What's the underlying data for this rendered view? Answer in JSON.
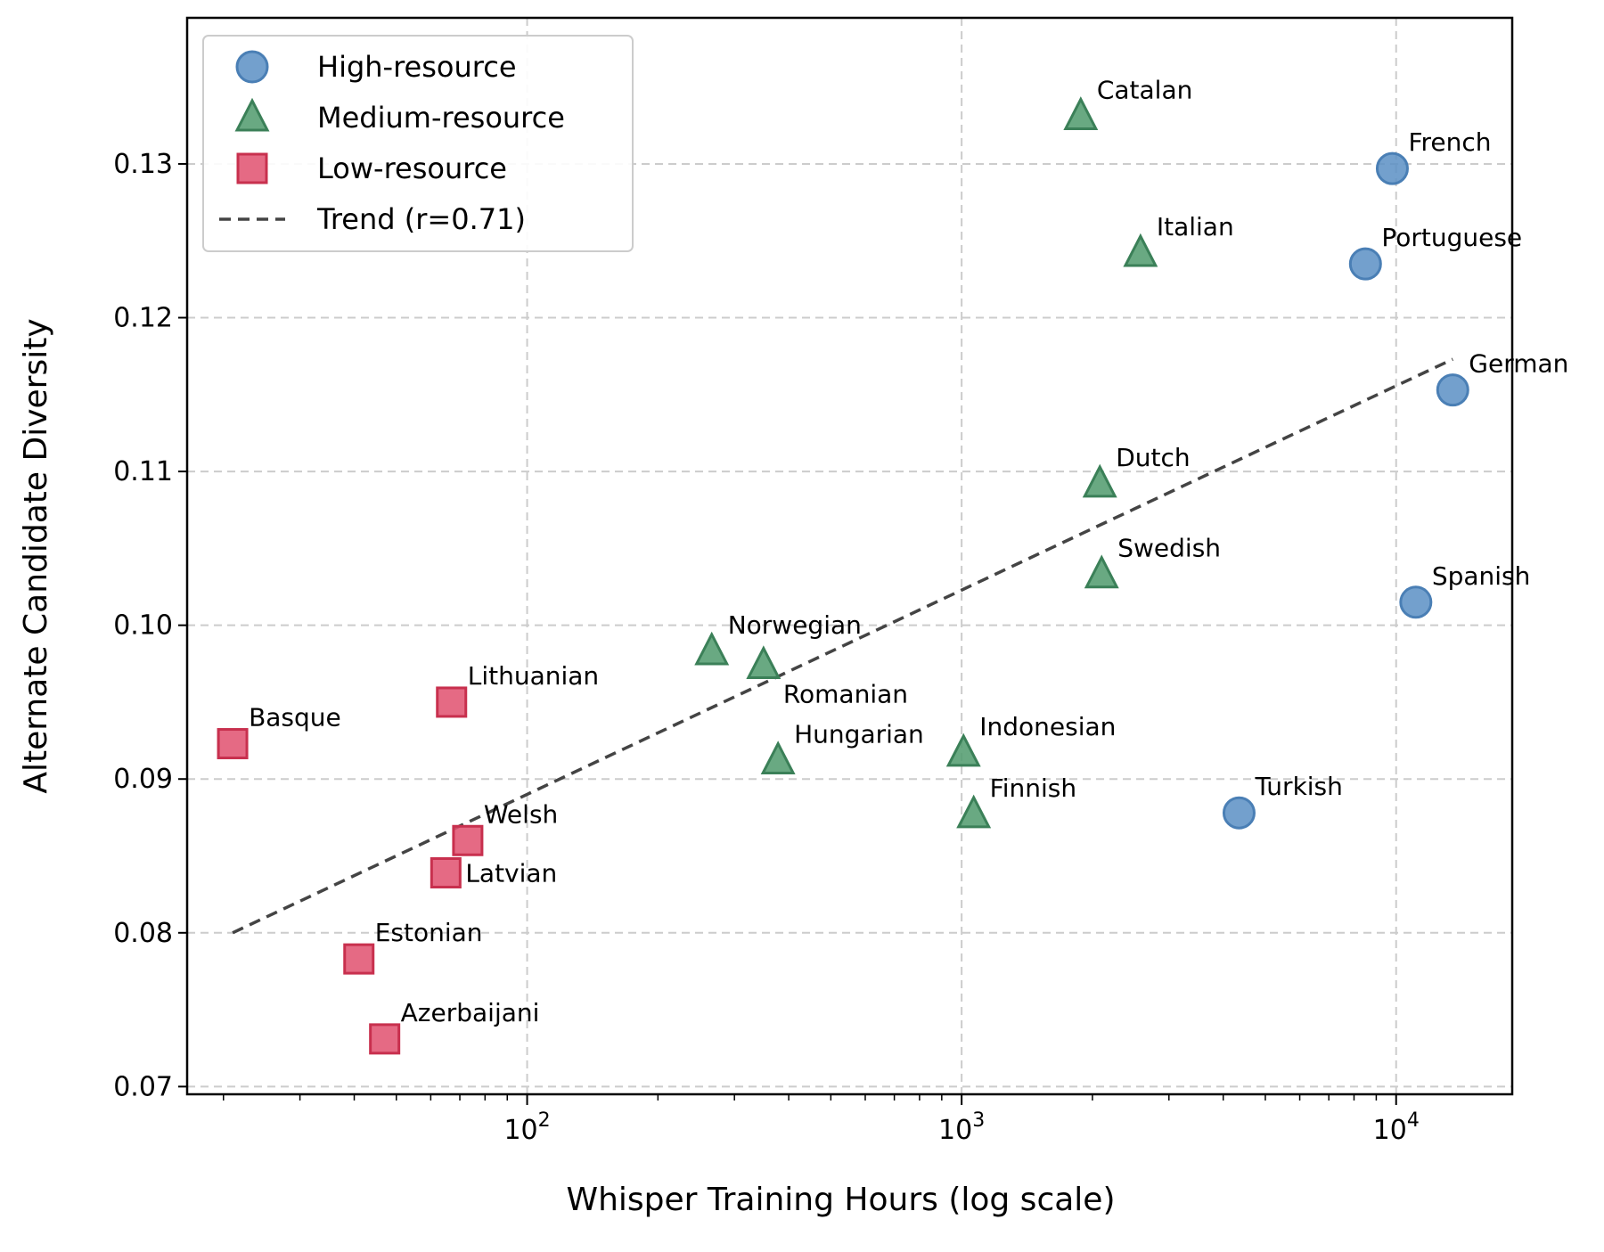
{
  "chart_data": {
    "type": "scatter",
    "title": "",
    "xlabel": "Whisper Training Hours (log scale)",
    "ylabel": "Alternate Candidate Diversity",
    "xscale": "log",
    "xlim": [
      16.5,
      18500
    ],
    "ylim": [
      0.0695,
      0.1395
    ],
    "x_ticks": [
      {
        "value": 100,
        "base": "10",
        "exp": "2"
      },
      {
        "value": 1000,
        "base": "10",
        "exp": "3"
      },
      {
        "value": 10000,
        "base": "10",
        "exp": "4"
      }
    ],
    "y_ticks": [
      {
        "value": 0.07,
        "label": "0.07"
      },
      {
        "value": 0.08,
        "label": "0.08"
      },
      {
        "value": 0.09,
        "label": "0.09"
      },
      {
        "value": 0.1,
        "label": "0.10"
      },
      {
        "value": 0.11,
        "label": "0.11"
      },
      {
        "value": 0.12,
        "label": "0.12"
      },
      {
        "value": 0.13,
        "label": "0.13"
      }
    ],
    "grid": true,
    "legend_position": "top-left",
    "series": [
      {
        "name": "High-resource",
        "marker": "circle",
        "color": "#5b8fc4",
        "edge": "#4a7fb5",
        "points": [
          {
            "label": "French",
            "x": 9800,
            "y": 0.1297,
            "label_pos": "upper-right"
          },
          {
            "label": "Portuguese",
            "x": 8500,
            "y": 0.1235,
            "label_pos": "upper-right"
          },
          {
            "label": "German",
            "x": 13500,
            "y": 0.1153,
            "label_pos": "upper-right"
          },
          {
            "label": "Spanish",
            "x": 11100,
            "y": 0.1015,
            "label_pos": "upper-right"
          },
          {
            "label": "Turkish",
            "x": 4350,
            "y": 0.0878,
            "label_pos": "upper-right"
          }
        ]
      },
      {
        "name": "Medium-resource",
        "marker": "triangle",
        "color": "#4f9a6c",
        "edge": "#3b8058",
        "points": [
          {
            "label": "Catalan",
            "x": 1880,
            "y": 0.1331,
            "label_pos": "upper-right"
          },
          {
            "label": "Italian",
            "x": 2580,
            "y": 0.1242,
            "label_pos": "upper-right"
          },
          {
            "label": "Dutch",
            "x": 2080,
            "y": 0.1092,
            "label_pos": "upper-right"
          },
          {
            "label": "Swedish",
            "x": 2100,
            "y": 0.1033,
            "label_pos": "upper-right"
          },
          {
            "label": "Norwegian",
            "x": 266,
            "y": 0.0983,
            "label_pos": "upper-right"
          },
          {
            "label": "Romanian",
            "x": 350,
            "y": 0.0974,
            "label_pos": "lower-right"
          },
          {
            "label": "Hungarian",
            "x": 378,
            "y": 0.0912,
            "label_pos": "upper-right"
          },
          {
            "label": "Indonesian",
            "x": 1010,
            "y": 0.0917,
            "label_pos": "upper-right"
          },
          {
            "label": "Finnish",
            "x": 1066,
            "y": 0.0877,
            "label_pos": "upper-right"
          }
        ]
      },
      {
        "name": "Low-resource",
        "marker": "square",
        "color": "#e0506e",
        "edge": "#c8304e",
        "points": [
          {
            "label": "Basque",
            "x": 21,
            "y": 0.0923,
            "label_pos": "upper-right"
          },
          {
            "label": "Lithuanian",
            "x": 67,
            "y": 0.095,
            "label_pos": "upper-right"
          },
          {
            "label": "Welsh",
            "x": 73,
            "y": 0.086,
            "label_pos": "upper-right"
          },
          {
            "label": "Latvian",
            "x": 65,
            "y": 0.0839,
            "label_pos": "right"
          },
          {
            "label": "Estonian",
            "x": 41,
            "y": 0.0783,
            "label_pos": "upper-right"
          },
          {
            "label": "Azerbaijani",
            "x": 47,
            "y": 0.0731,
            "label_pos": "upper-right"
          }
        ]
      }
    ],
    "trend": {
      "name": "Trend (r=0.71)",
      "style": "dashed",
      "color": "#444444",
      "x": [
        21,
        13500
      ],
      "y": [
        0.08,
        0.1173
      ]
    }
  }
}
